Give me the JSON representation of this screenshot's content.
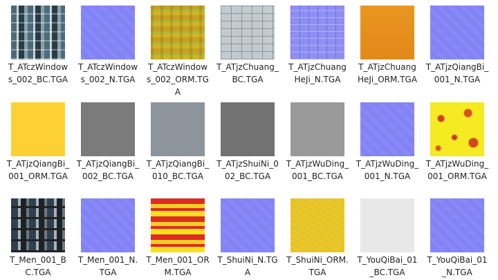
{
  "files": [
    {
      "name": "T_ATczWindows_002_BC.TGA"
    },
    {
      "name": "T_ATczWindows_002_N.TGA"
    },
    {
      "name": "T_ATczWindows_002_ORM.TGA"
    },
    {
      "name": "T_ATjzChuang_BC.TGA"
    },
    {
      "name": "T_ATjzChuangHeJi_N.TGA"
    },
    {
      "name": "T_ATjzChuangHeJi_ORM.TGA"
    },
    {
      "name": "T_ATjzQiangBi_001_N.TGA"
    },
    {
      "name": "T_ATjzQiangBi_001_ORM.TGA"
    },
    {
      "name": "T_ATjzQiangBi_002_BC.TGA"
    },
    {
      "name": "T_ATjzQiangBi_010_BC.TGA"
    },
    {
      "name": "T_ATjzShuiNi_002_BC.TGA"
    },
    {
      "name": "T_ATjzWuDing_001_BC.TGA"
    },
    {
      "name": "T_ATjzWuDing_001_N.TGA"
    },
    {
      "name": "T_ATjzWuDing_001_ORM.TGA"
    },
    {
      "name": "T_Men_001_BC.TGA"
    },
    {
      "name": "T_Men_001_N.TGA"
    },
    {
      "name": "T_Men_001_ORM.TGA"
    },
    {
      "name": "T_ShuiNi_N.TGA"
    },
    {
      "name": "T_ShuiNi_ORM.TGA"
    },
    {
      "name": "T_YouQiBai_01_BC.TGA"
    },
    {
      "name": "T_YouQiBai_01_N.TGA"
    }
  ]
}
